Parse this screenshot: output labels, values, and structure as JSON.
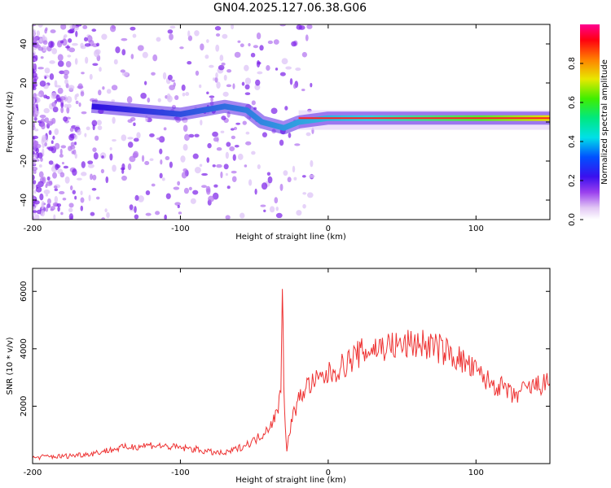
{
  "title": "GN04.2025.127.06.38.G06",
  "chart_data": [
    {
      "type": "heatmap",
      "xlabel": "Height of straight line (km)",
      "ylabel": "Frequency (Hz)",
      "xlim": [
        -200,
        150
      ],
      "ylim": [
        -50,
        50
      ],
      "xticks": [
        -200,
        -100,
        0,
        100
      ],
      "yticks": [
        -40,
        -20,
        0,
        20,
        40
      ],
      "colorbar": {
        "label": "Normalized spectral amplitude",
        "range": [
          0,
          1
        ],
        "ticks": [
          0.0,
          0.2,
          0.4,
          0.6,
          0.8
        ]
      },
      "ridge": [
        {
          "x": -160,
          "y": 8
        },
        {
          "x": -130,
          "y": 6
        },
        {
          "x": -100,
          "y": 4
        },
        {
          "x": -70,
          "y": 8
        },
        {
          "x": -55,
          "y": 6
        },
        {
          "x": -45,
          "y": 0
        },
        {
          "x": -30,
          "y": -3
        },
        {
          "x": -20,
          "y": 0
        },
        {
          "x": 0,
          "y": 2
        },
        {
          "x": 50,
          "y": 2
        },
        {
          "x": 85,
          "y": 2
        },
        {
          "x": 150,
          "y": 2
        }
      ]
    },
    {
      "type": "line",
      "xlabel": "Height of straight line (km)",
      "ylabel": "SNR (10 * v/v)",
      "xlim": [
        -200,
        150
      ],
      "ylim": [
        0,
        6800
      ],
      "xticks": [
        -200,
        -100,
        0,
        100
      ],
      "yticks": [
        2000,
        4000,
        6000
      ],
      "color": "#ee3333",
      "series": [
        {
          "x": [
            -200,
            -190,
            -180,
            -170,
            -160,
            -150,
            -140,
            -130,
            -120,
            -110,
            -100,
            -90,
            -80,
            -70,
            -60,
            -50,
            -45,
            -40,
            -35,
            -32,
            -31,
            -30,
            -29,
            -28,
            -25,
            -20,
            -15,
            -10,
            0,
            10,
            20,
            30,
            40,
            50,
            60,
            70,
            80,
            90,
            100,
            110,
            120,
            125,
            130,
            140,
            150
          ],
          "y": [
            200,
            250,
            250,
            300,
            350,
            450,
            550,
            600,
            650,
            600,
            550,
            500,
            400,
            350,
            550,
            800,
            1000,
            1300,
            1700,
            2500,
            6800,
            3000,
            1200,
            400,
            1500,
            2200,
            2700,
            2800,
            3100,
            3400,
            3800,
            4000,
            4100,
            4100,
            4200,
            4100,
            3900,
            3600,
            3200,
            2800,
            2600,
            2300,
            2500,
            2700,
            2800
          ]
        }
      ]
    }
  ]
}
